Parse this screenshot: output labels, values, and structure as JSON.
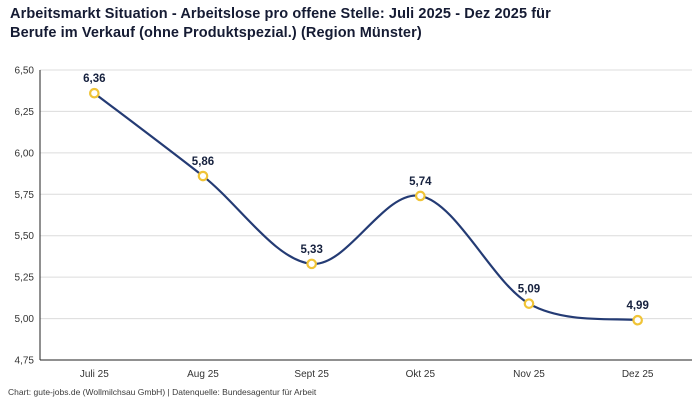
{
  "title": {
    "line1": "Arbeitsmarkt Situation - Arbeitslose pro offene Stelle: Juli 2025 - Dez 2025 für",
    "line2": "Berufe im Verkauf (ohne Produktspezial.) (Region Münster)"
  },
  "footer": "Chart: gute-jobs.de (Wollmilchsau GmbH) | Datenquelle: Bundesagentur für Arbeit",
  "chart_data": {
    "type": "line",
    "title": "Arbeitsmarkt Situation - Arbeitslose pro offene Stelle: Juli 2025 - Dez 2025 für Berufe im Verkauf (ohne Produktspezial.) (Region Münster)",
    "categories": [
      "Juli 25",
      "Aug 25",
      "Sept 25",
      "Okt 25",
      "Nov 25",
      "Dez 25"
    ],
    "values": [
      6.36,
      5.86,
      5.33,
      5.74,
      5.09,
      4.99
    ],
    "value_labels": [
      "6,36",
      "5,86",
      "5,33",
      "5,74",
      "5,09",
      "4,99"
    ],
    "xlabel": "",
    "ylabel": "",
    "ylim": [
      4.75,
      6.5
    ],
    "ytick_step": 0.25,
    "ytick_labels": [
      "4,75",
      "5,00",
      "5,25",
      "5,50",
      "5,75",
      "6,00",
      "6,25",
      "6,50"
    ],
    "grid": true,
    "legend": "none",
    "smooth": true,
    "colors": {
      "line": "#243b74",
      "marker_fill": "#ffffff",
      "marker_stroke": "#f0c437",
      "grid": "#dcdcdc",
      "axis": "#222222",
      "tick_text": "#333333",
      "point_label_text": "#16213e"
    }
  }
}
